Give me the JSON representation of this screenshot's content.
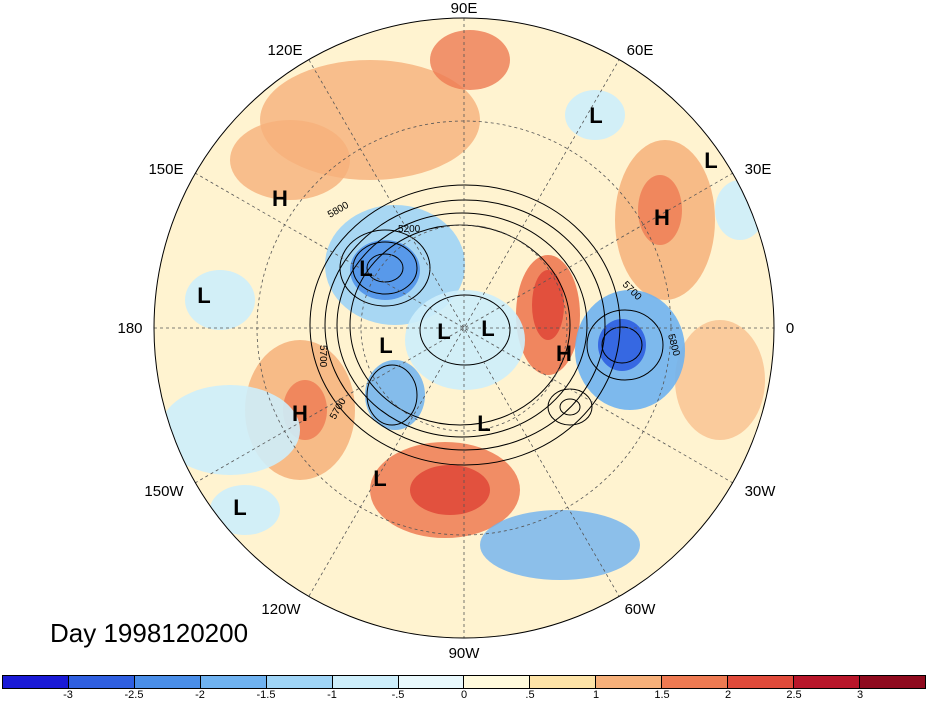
{
  "map": {
    "longitude_labels": [
      "90E",
      "60E",
      "30E",
      "0",
      "30W",
      "60W",
      "90W",
      "120W",
      "150W",
      "180",
      "150E",
      "120E"
    ],
    "contour_labels": [
      "5800",
      "5200",
      "5700",
      "5700",
      "5800",
      "5700"
    ],
    "pressure_centers": [
      {
        "type": "L",
        "label": "L"
      },
      {
        "type": "L",
        "label": "L"
      },
      {
        "type": "H",
        "label": "H"
      },
      {
        "type": "H",
        "label": "H"
      },
      {
        "type": "L",
        "label": "L"
      },
      {
        "type": "L",
        "label": "L"
      },
      {
        "type": "L",
        "label": "L"
      },
      {
        "type": "L",
        "label": "L"
      },
      {
        "type": "L",
        "label": "L"
      },
      {
        "type": "H",
        "label": "H"
      },
      {
        "type": "H",
        "label": "H"
      },
      {
        "type": "L",
        "label": "L"
      },
      {
        "type": "L",
        "label": "L"
      },
      {
        "type": "L",
        "label": "L"
      }
    ],
    "anomaly_colors": {
      "negative": "#4f94e8",
      "positive": "#e8553c",
      "neutral": "#fff8d6"
    }
  },
  "title": "Day 1998120200",
  "colorbar": {
    "ticks": [
      "-3",
      "-2.5",
      "-2",
      "-1.5",
      "-1",
      "-.5",
      "0",
      ".5",
      "1",
      "1.5",
      "2",
      "2.5",
      "3"
    ],
    "colors": [
      "#1a1ad6",
      "#2f5fe0",
      "#4a8ee8",
      "#6fb2f0",
      "#9fd4f6",
      "#cdeefb",
      "#e8f8fc",
      "#fffadc",
      "#fde3a7",
      "#f6b07a",
      "#ee7a52",
      "#e04a3a",
      "#b8162a",
      "#8f0a1e"
    ]
  }
}
